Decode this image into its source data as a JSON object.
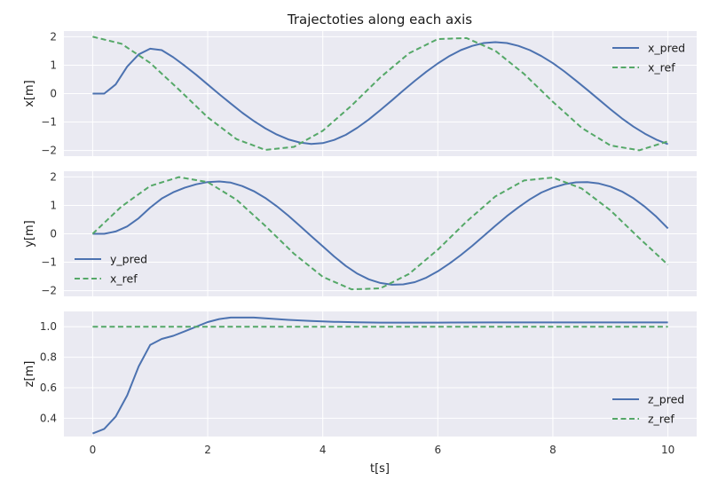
{
  "chart_data": {
    "title": "Trajectoties along each axis",
    "xlabel": "t[s]",
    "xlim": [
      -0.5,
      10.5
    ],
    "x_ticks": [
      0,
      2,
      4,
      6,
      8,
      10
    ],
    "x_tick_labels": [
      "0",
      "2",
      "4",
      "6",
      "8",
      "10"
    ],
    "grid": true,
    "colors": {
      "background": "#eaeaf2",
      "grid": "#ffffff",
      "pred": "#4c72b0",
      "ref": "#55a868"
    },
    "panels": [
      {
        "type": "line",
        "ylabel": "x[m]",
        "ylim": [
          -2.2,
          2.2
        ],
        "y_ticks": [
          -2,
          -1,
          0,
          1,
          2
        ],
        "y_tick_labels": [
          "−2",
          "−1",
          "0",
          "1",
          "2"
        ],
        "legend_position": "upper-right",
        "series": [
          {
            "name": "x_pred",
            "style": "solid",
            "x": [
              0,
              0.2,
              0.4,
              0.6,
              0.8,
              1.0,
              1.2,
              1.4,
              1.6,
              1.8,
              2.0,
              2.2,
              2.4,
              2.6,
              2.8,
              3.0,
              3.2,
              3.4,
              3.6,
              3.8,
              4.0,
              4.2,
              4.4,
              4.6,
              4.8,
              5.0,
              5.2,
              5.4,
              5.6,
              5.8,
              6.0,
              6.2,
              6.4,
              6.6,
              6.8,
              7.0,
              7.2,
              7.4,
              7.6,
              7.8,
              8.0,
              8.2,
              8.4,
              8.6,
              8.8,
              9.0,
              9.2,
              9.4,
              9.6,
              9.8,
              10.0
            ],
            "y": [
              0,
              0,
              0.32,
              0.95,
              1.38,
              1.58,
              1.53,
              1.28,
              0.98,
              0.66,
              0.32,
              -0.02,
              -0.35,
              -0.67,
              -0.96,
              -1.22,
              -1.44,
              -1.61,
              -1.72,
              -1.77,
              -1.74,
              -1.63,
              -1.45,
              -1.2,
              -0.91,
              -0.58,
              -0.24,
              0.11,
              0.45,
              0.77,
              1.06,
              1.32,
              1.53,
              1.68,
              1.78,
              1.81,
              1.78,
              1.68,
              1.53,
              1.32,
              1.07,
              0.78,
              0.46,
              0.13,
              -0.21,
              -0.55,
              -0.87,
              -1.16,
              -1.41,
              -1.62,
              -1.78
            ]
          },
          {
            "name": "x_ref",
            "style": "dashed",
            "x": [
              0,
              0.5,
              1.0,
              1.5,
              2.0,
              2.5,
              3.0,
              3.5,
              4.0,
              4.5,
              5.0,
              5.5,
              6.0,
              6.5,
              7.0,
              7.5,
              8.0,
              8.5,
              9.0,
              9.5,
              10.0
            ],
            "y": [
              2,
              1.755,
              1.081,
              0.141,
              -0.832,
              -1.602,
              -1.98,
              -1.873,
              -1.307,
              -0.422,
              0.567,
              1.419,
              1.92,
              1.953,
              1.508,
              0.693,
              -0.291,
              -1.204,
              -1.822,
              -1.995,
              -1.678
            ]
          }
        ]
      },
      {
        "type": "line",
        "ylabel": "y[m]",
        "ylim": [
          -2.2,
          2.2
        ],
        "y_ticks": [
          -2,
          -1,
          0,
          1,
          2
        ],
        "y_tick_labels": [
          "−2",
          "−1",
          "0",
          "1",
          "2"
        ],
        "legend_position": "lower-left",
        "series": [
          {
            "name": "y_pred",
            "style": "solid",
            "x": [
              0,
              0.2,
              0.4,
              0.6,
              0.8,
              1.0,
              1.2,
              1.4,
              1.6,
              1.8,
              2.0,
              2.2,
              2.4,
              2.6,
              2.8,
              3.0,
              3.2,
              3.4,
              3.6,
              3.8,
              4.0,
              4.2,
              4.4,
              4.6,
              4.8,
              5.0,
              5.2,
              5.4,
              5.6,
              5.8,
              6.0,
              6.2,
              6.4,
              6.6,
              6.8,
              7.0,
              7.2,
              7.4,
              7.6,
              7.8,
              8.0,
              8.2,
              8.4,
              8.6,
              8.8,
              9.0,
              9.2,
              9.4,
              9.6,
              9.8,
              10.0
            ],
            "y": [
              0,
              0,
              0.08,
              0.26,
              0.55,
              0.92,
              1.24,
              1.46,
              1.62,
              1.74,
              1.82,
              1.84,
              1.8,
              1.68,
              1.5,
              1.26,
              0.97,
              0.64,
              0.28,
              -0.08,
              -0.44,
              -0.8,
              -1.13,
              -1.4,
              -1.6,
              -1.73,
              -1.79,
              -1.78,
              -1.7,
              -1.54,
              -1.32,
              -1.05,
              -0.75,
              -0.42,
              -0.07,
              0.28,
              0.62,
              0.93,
              1.21,
              1.45,
              1.62,
              1.74,
              1.81,
              1.82,
              1.77,
              1.66,
              1.49,
              1.25,
              0.95,
              0.6,
              0.19
            ]
          },
          {
            "name": "x_ref",
            "style": "dashed",
            "x": [
              0,
              0.5,
              1.0,
              1.5,
              2.0,
              2.5,
              3.0,
              3.5,
              4.0,
              4.5,
              5.0,
              5.5,
              6.0,
              6.5,
              7.0,
              7.5,
              8.0,
              8.5,
              9.0,
              9.5,
              10.0
            ],
            "y": [
              0,
              0.959,
              1.683,
              1.995,
              1.819,
              1.197,
              0.282,
              -0.702,
              -1.514,
              -1.955,
              -1.918,
              -1.411,
              -0.559,
              0.43,
              1.314,
              1.876,
              1.979,
              1.596,
              0.824,
              -0.151,
              -1.088
            ]
          }
        ]
      },
      {
        "type": "line",
        "ylabel": "z[m]",
        "ylim": [
          0.28,
          1.1
        ],
        "y_ticks": [
          0.4,
          0.6,
          0.8,
          1.0
        ],
        "y_tick_labels": [
          "0.4",
          "0.6",
          "0.8",
          "1.0"
        ],
        "legend_position": "lower-right",
        "series": [
          {
            "name": "z_pred",
            "style": "solid",
            "x": [
              0,
              0.2,
              0.4,
              0.6,
              0.8,
              1.0,
              1.2,
              1.4,
              1.6,
              1.8,
              2.0,
              2.2,
              2.4,
              2.6,
              2.8,
              3.0,
              3.4,
              3.8,
              4.2,
              4.6,
              5.0,
              6.0,
              7.0,
              8.0,
              9.0,
              10.0
            ],
            "y": [
              0.3,
              0.33,
              0.41,
              0.55,
              0.74,
              0.88,
              0.92,
              0.94,
              0.97,
              1.0,
              1.03,
              1.05,
              1.06,
              1.06,
              1.06,
              1.055,
              1.045,
              1.037,
              1.032,
              1.029,
              1.027,
              1.027,
              1.028,
              1.028,
              1.028,
              1.028
            ]
          },
          {
            "name": "z_ref",
            "style": "dashed",
            "x": [
              0,
              10
            ],
            "y": [
              1.0,
              1.0
            ]
          }
        ]
      }
    ]
  }
}
